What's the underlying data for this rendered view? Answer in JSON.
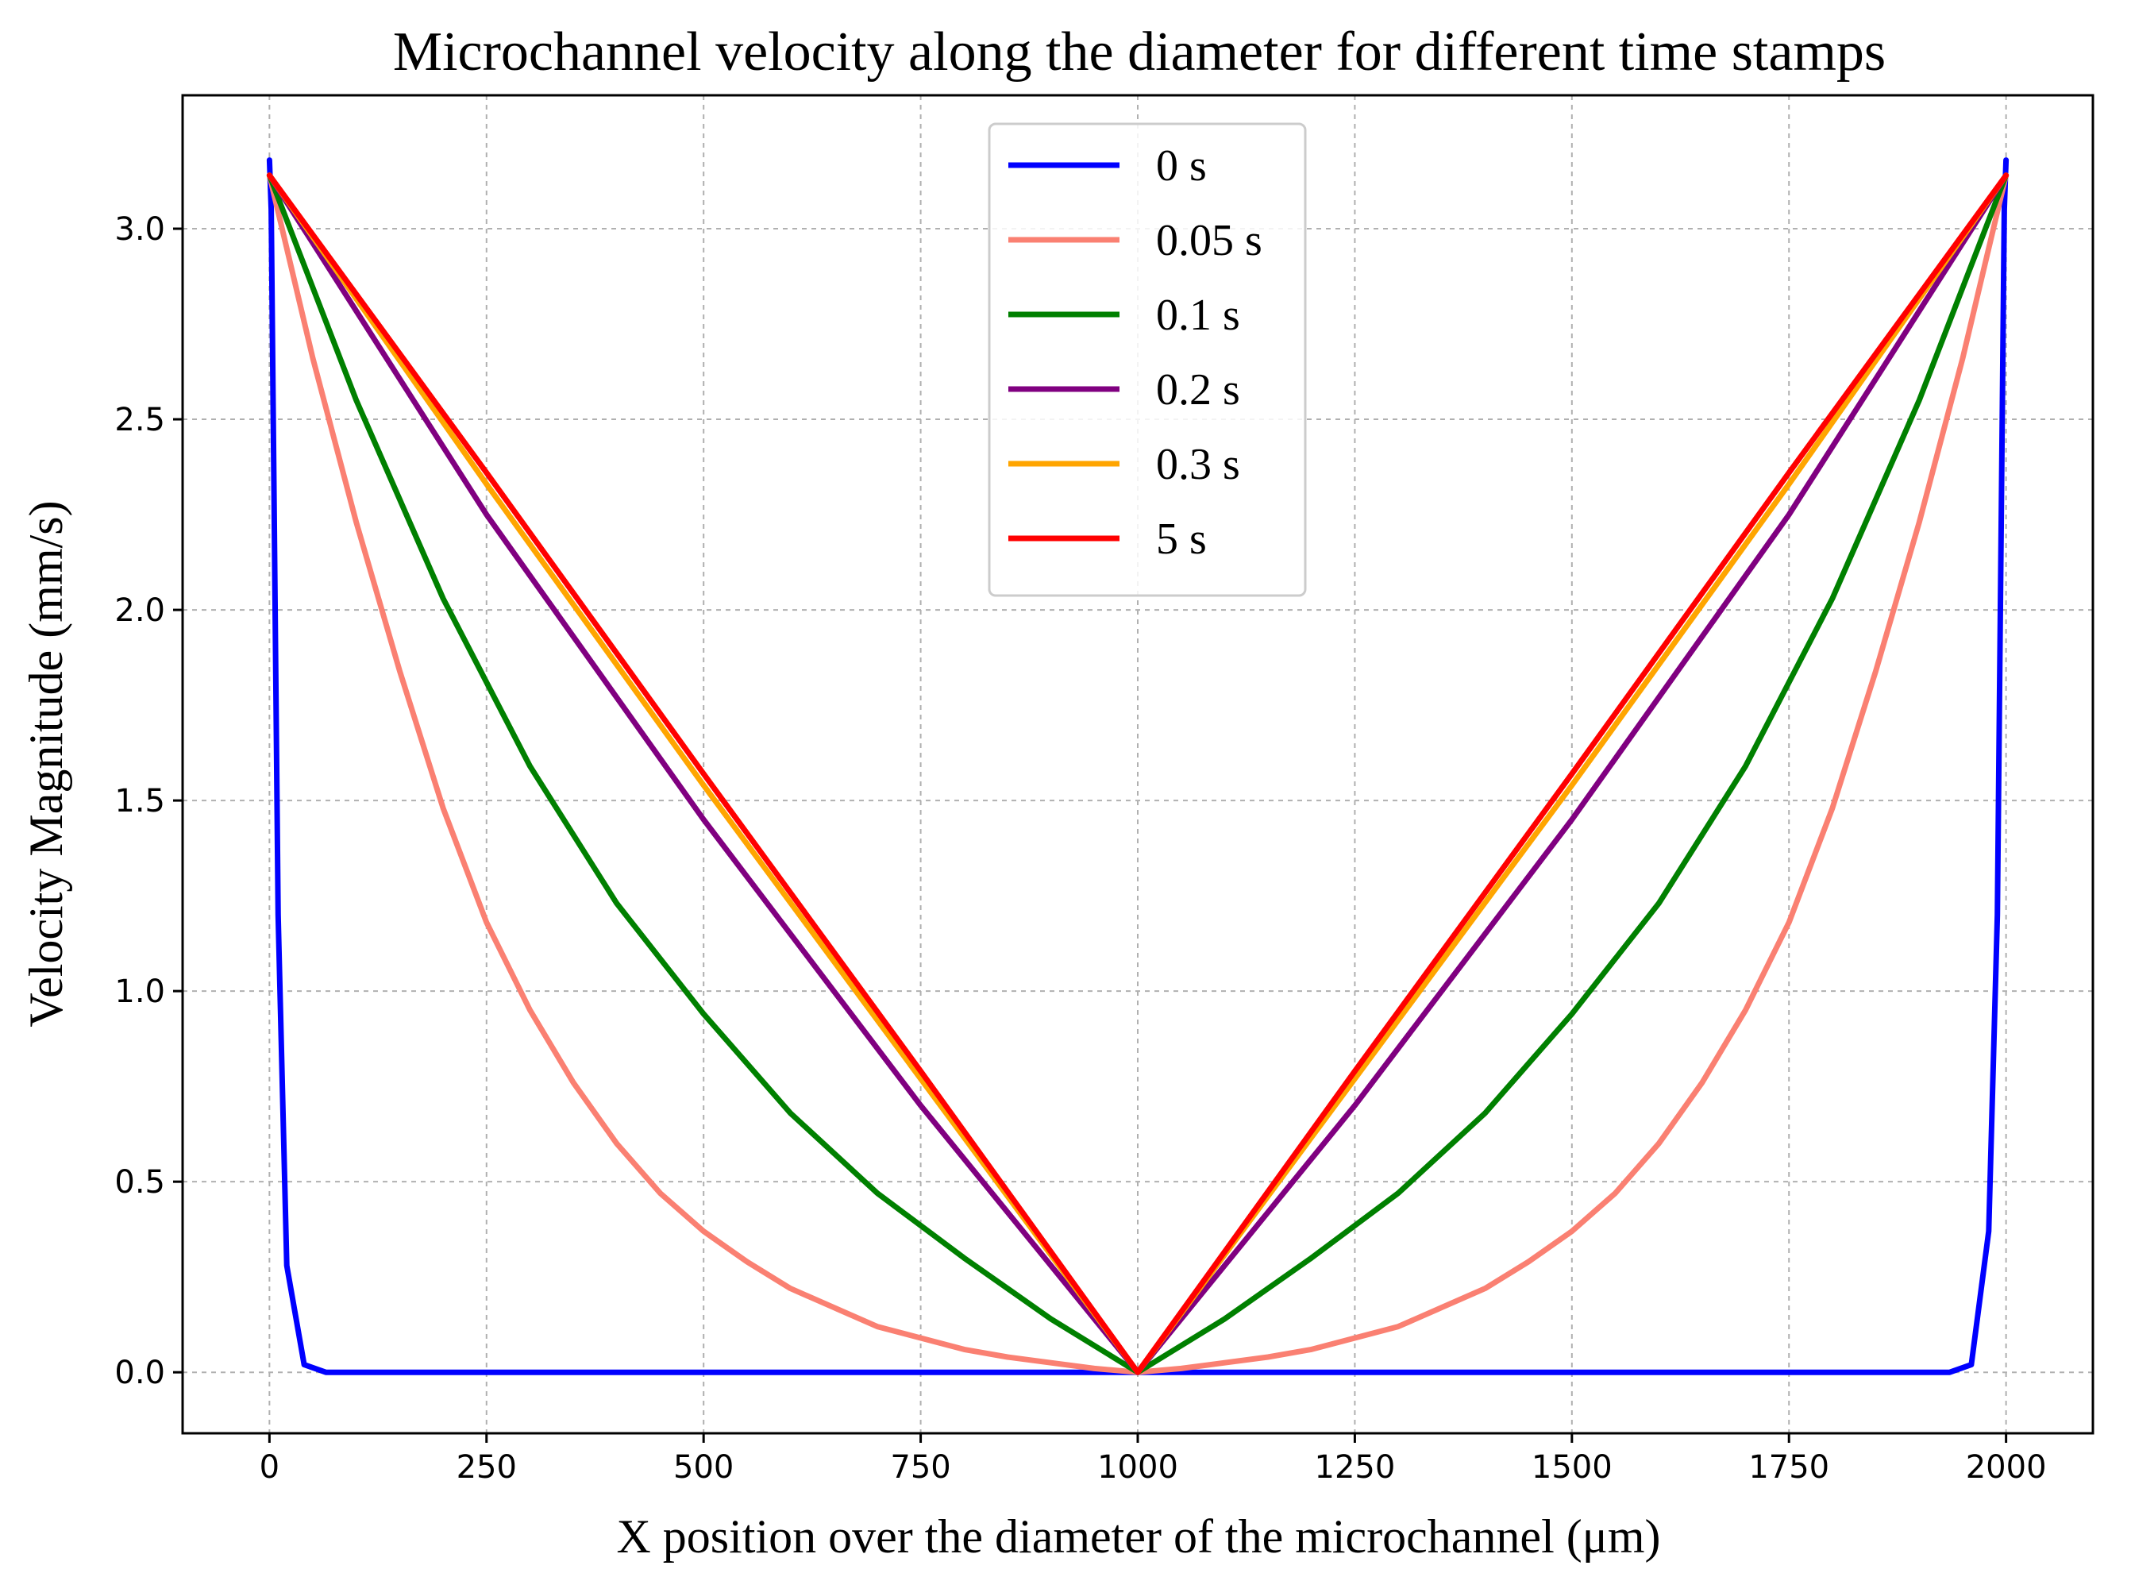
{
  "chart_data": {
    "type": "line",
    "title": "Microchannel velocity along the diameter for different time stamps",
    "xlabel": "X position over the diameter of the microchannel (μm)",
    "ylabel": "Velocity Magnitude (mm/s)",
    "xlim": [
      -100,
      2100
    ],
    "ylim": [
      -0.16,
      3.35
    ],
    "xticks": [
      0,
      250,
      500,
      750,
      1000,
      1250,
      1500,
      1750,
      2000
    ],
    "yticks": [
      0.0,
      0.5,
      1.0,
      1.5,
      2.0,
      2.5,
      3.0
    ],
    "xtick_labels": [
      "0",
      "250",
      "500",
      "750",
      "1000",
      "1250",
      "1500",
      "1750",
      "2000"
    ],
    "ytick_labels": [
      "0.0",
      "0.5",
      "1.0",
      "1.5",
      "2.0",
      "2.5",
      "3.0"
    ],
    "grid": true,
    "legend_position": "top-center",
    "series": [
      {
        "name": "0 s",
        "color": "#0000ff",
        "x": [
          0,
          2,
          10,
          20,
          40,
          65,
          100,
          500,
          1000,
          1500,
          1900,
          1935,
          1960,
          1980,
          1990,
          1998,
          2000
        ],
        "y": [
          3.18,
          3.05,
          1.2,
          0.28,
          0.02,
          0.0,
          0.0,
          0.0,
          0.0,
          0.0,
          0.0,
          0.0,
          0.02,
          0.37,
          1.2,
          3.05,
          3.18
        ]
      },
      {
        "name": "0.05 s",
        "color": "#fa8072",
        "x": [
          0,
          50,
          100,
          150,
          200,
          250,
          300,
          350,
          400,
          450,
          500,
          550,
          600,
          650,
          700,
          750,
          800,
          850,
          900,
          950,
          1000,
          1050,
          1100,
          1150,
          1200,
          1250,
          1300,
          1350,
          1400,
          1450,
          1500,
          1550,
          1600,
          1650,
          1700,
          1750,
          1800,
          1850,
          1900,
          1950,
          2000
        ],
        "y": [
          3.14,
          2.66,
          2.23,
          1.84,
          1.48,
          1.18,
          0.95,
          0.76,
          0.6,
          0.47,
          0.37,
          0.29,
          0.22,
          0.17,
          0.12,
          0.09,
          0.06,
          0.04,
          0.025,
          0.01,
          0.0,
          0.01,
          0.025,
          0.04,
          0.06,
          0.09,
          0.12,
          0.17,
          0.22,
          0.29,
          0.37,
          0.47,
          0.6,
          0.76,
          0.95,
          1.18,
          1.48,
          1.84,
          2.23,
          2.66,
          3.14
        ]
      },
      {
        "name": "0.1 s",
        "color": "#008000",
        "x": [
          0,
          100,
          200,
          300,
          400,
          500,
          600,
          700,
          800,
          900,
          1000,
          1100,
          1200,
          1300,
          1400,
          1500,
          1600,
          1700,
          1800,
          1900,
          2000
        ],
        "y": [
          3.14,
          2.55,
          2.03,
          1.59,
          1.23,
          0.94,
          0.68,
          0.47,
          0.3,
          0.14,
          0.0,
          0.14,
          0.3,
          0.47,
          0.68,
          0.94,
          1.23,
          1.59,
          2.03,
          2.55,
          3.14
        ]
      },
      {
        "name": "0.2 s",
        "color": "#800080",
        "x": [
          0,
          250,
          500,
          750,
          1000,
          1250,
          1500,
          1750,
          2000
        ],
        "y": [
          3.14,
          2.25,
          1.45,
          0.7,
          0.0,
          0.7,
          1.45,
          2.25,
          3.14
        ]
      },
      {
        "name": "0.3 s",
        "color": "#ffa500",
        "x": [
          0,
          250,
          500,
          750,
          1000,
          1250,
          1500,
          1750,
          2000
        ],
        "y": [
          3.14,
          2.33,
          1.54,
          0.77,
          0.0,
          0.77,
          1.54,
          2.33,
          3.14
        ]
      },
      {
        "name": "5 s",
        "color": "#ff0000",
        "x": [
          0,
          250,
          500,
          750,
          1000,
          1250,
          1500,
          1750,
          2000
        ],
        "y": [
          3.14,
          2.36,
          1.57,
          0.79,
          0.0,
          0.79,
          1.57,
          2.36,
          3.14
        ]
      }
    ]
  }
}
